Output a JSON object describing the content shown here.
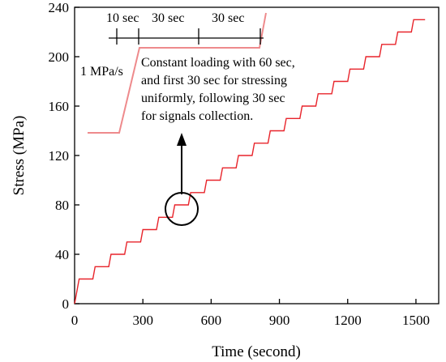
{
  "chart_data": {
    "type": "line",
    "xlabel": "Time (second)",
    "ylabel": "Stress (MPa)",
    "xlim": [
      0,
      1600
    ],
    "ylim": [
      0,
      240
    ],
    "xticks": [
      0,
      300,
      600,
      900,
      1200,
      1500
    ],
    "yticks": [
      0,
      40,
      80,
      120,
      160,
      200,
      240
    ],
    "x_tick_labels": [
      "0",
      "300",
      "600",
      "900",
      "1200",
      "1500"
    ],
    "y_tick_labels": [
      "0",
      "40",
      "80",
      "120",
      "160",
      "200",
      "240"
    ],
    "line_color": "#e8242b",
    "steps": {
      "load_rate_mpa_per_s": 1,
      "step_mpa": 10,
      "ramp_s": 10,
      "hold_s": 60,
      "first_hold_at_mpa": 20,
      "last_level_mpa": 230,
      "end_time_s": 1540
    },
    "inset": {
      "segments": [
        "10 sec",
        "30 sec",
        "30 sec"
      ],
      "rate_label": "1 MPa/s",
      "note_lines": [
        "Constant loading with 60 sec,",
        "and first 30 sec for stressing",
        "uniformly, following 30 sec",
        "for signals collection."
      ]
    },
    "grid": false,
    "legend": "none"
  }
}
